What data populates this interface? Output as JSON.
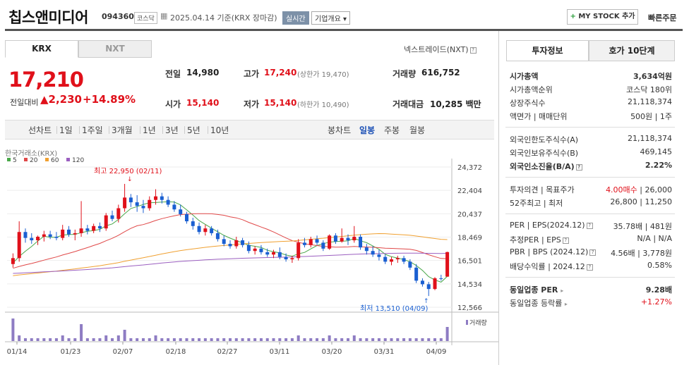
{
  "header": {
    "name": "칩스앤미디어",
    "code": "094360",
    "market_tag": "코스닥",
    "date_text": "2025.04.14 기준(KRX 장마감)",
    "realtime": "실시간",
    "company_overview": "기업개요",
    "mystock": "MY STOCK 추가",
    "quick_order": "빠른주문"
  },
  "tabs": {
    "krx": "KRX",
    "nxt": "NXT",
    "nextrade": "넥스트레이드(NXT)"
  },
  "price": {
    "current": "17,210",
    "change_label": "전일대비",
    "change": "2,230",
    "change_pct": "+14.89%"
  },
  "quote": {
    "prev_label": "전일",
    "prev": "14,980",
    "high_label": "고가",
    "high": "17,240",
    "high_sub": "(상한가 19,470)",
    "volume_label": "거래량",
    "volume": "616,752",
    "open_label": "시가",
    "open": "15,140",
    "low_label": "저가",
    "low": "15,140",
    "low_sub": "(하한가 10,490)",
    "amount_label": "거래대금",
    "amount": "10,285",
    "amount_unit": "백만"
  },
  "chart_tabs": {
    "left": [
      "선차트",
      "1일",
      "1주일",
      "3개월",
      "1년",
      "3년",
      "5년",
      "10년"
    ],
    "right": [
      "봉차트",
      "일봉",
      "주봉",
      "월봉"
    ],
    "active": "일봉"
  },
  "chart_data": {
    "type": "candlestick",
    "source": "한국거래소(KRX)",
    "legend": [
      {
        "name": "5",
        "color": "#4aa84a"
      },
      {
        "name": "20",
        "color": "#e04848"
      },
      {
        "name": "60",
        "color": "#f0a030"
      },
      {
        "name": "120",
        "color": "#9b5fc0"
      }
    ],
    "yticks": [
      "24,372",
      "22,404",
      "20,437",
      "18,469",
      "16,501",
      "14,534",
      "12,566"
    ],
    "ylim": [
      12566,
      24372
    ],
    "xticks": [
      "01/14",
      "01/23",
      "02/07",
      "02/18",
      "02/27",
      "03/11",
      "03/20",
      "03/31",
      "04/09"
    ],
    "high_annotation": "최고 22,950 (02/11)",
    "low_annotation": "최저 13,510 (04/09)",
    "volume_label": "거래량",
    "candles": [
      [
        16200,
        17100,
        15900,
        16700
      ],
      [
        16700,
        19800,
        16400,
        18900
      ],
      [
        18900,
        19200,
        18000,
        18400
      ],
      [
        18400,
        18800,
        17900,
        18200
      ],
      [
        18200,
        18600,
        17800,
        18500
      ],
      [
        18500,
        19000,
        18100,
        18700
      ],
      [
        18700,
        19000,
        18300,
        18500
      ],
      [
        18500,
        18900,
        18200,
        18400
      ],
      [
        18400,
        19500,
        18200,
        19100
      ],
      [
        19100,
        19400,
        18500,
        18700
      ],
      [
        18700,
        19100,
        18200,
        18800
      ],
      [
        18800,
        21500,
        18500,
        19200
      ],
      [
        19200,
        19500,
        18700,
        19000
      ],
      [
        19000,
        19600,
        18800,
        19400
      ],
      [
        19400,
        19700,
        18900,
        19200
      ],
      [
        19200,
        20500,
        19000,
        20300
      ],
      [
        20300,
        20700,
        19800,
        20000
      ],
      [
        20000,
        21200,
        19700,
        20900
      ],
      [
        20900,
        22950,
        20600,
        21800
      ],
      [
        21800,
        22100,
        21000,
        21400
      ],
      [
        21400,
        22000,
        20600,
        21100
      ],
      [
        21100,
        21600,
        20500,
        20900
      ],
      [
        20900,
        21900,
        20700,
        21600
      ],
      [
        21600,
        22500,
        21200,
        21900
      ],
      [
        21900,
        22200,
        21300,
        21600
      ],
      [
        21600,
        21900,
        21000,
        21200
      ],
      [
        21200,
        21500,
        20600,
        20800
      ],
      [
        20800,
        21200,
        20200,
        20400
      ],
      [
        20400,
        20600,
        19600,
        19800
      ],
      [
        19800,
        20100,
        19100,
        19400
      ],
      [
        19400,
        19700,
        18700,
        18900
      ],
      [
        18900,
        19500,
        18600,
        19200
      ],
      [
        19200,
        19400,
        18600,
        18800
      ],
      [
        18800,
        19100,
        18100,
        18300
      ],
      [
        18300,
        18600,
        17700,
        17900
      ],
      [
        17900,
        18200,
        17500,
        17700
      ],
      [
        17700,
        18500,
        17500,
        18200
      ],
      [
        18200,
        18400,
        17600,
        17800
      ],
      [
        17800,
        18100,
        17100,
        17300
      ],
      [
        17300,
        17700,
        17000,
        17500
      ],
      [
        17500,
        17800,
        17000,
        17200
      ],
      [
        17200,
        17500,
        16800,
        17000
      ],
      [
        17000,
        17400,
        16700,
        17200
      ],
      [
        17200,
        17600,
        16600,
        16800
      ],
      [
        16800,
        17100,
        16400,
        16600
      ],
      [
        16600,
        16900,
        16300,
        16700
      ],
      [
        16700,
        18300,
        16500,
        18000
      ],
      [
        18000,
        18400,
        17600,
        17800
      ],
      [
        17800,
        18500,
        17600,
        18300
      ],
      [
        18300,
        18600,
        17800,
        18000
      ],
      [
        18000,
        18200,
        17300,
        17500
      ],
      [
        17500,
        18700,
        17400,
        18600
      ],
      [
        18600,
        18800,
        17900,
        18100
      ],
      [
        18100,
        19200,
        18000,
        18400
      ],
      [
        18400,
        18700,
        17800,
        18200
      ],
      [
        18200,
        19400,
        18000,
        18500
      ],
      [
        18500,
        18700,
        17400,
        17600
      ],
      [
        17600,
        17900,
        17000,
        17300
      ],
      [
        17300,
        17700,
        16800,
        17000
      ],
      [
        17000,
        17400,
        16500,
        16800
      ],
      [
        16800,
        17000,
        16200,
        16400
      ],
      [
        16400,
        16800,
        16100,
        16600
      ],
      [
        16600,
        16900,
        16300,
        16700
      ],
      [
        16700,
        16900,
        16200,
        16400
      ],
      [
        16400,
        16600,
        15700,
        15900
      ],
      [
        15900,
        16200,
        14600,
        14800
      ],
      [
        14800,
        15000,
        14300,
        14500
      ],
      [
        14500,
        14700,
        13510,
        14100
      ],
      [
        14100,
        15100,
        14000,
        15000
      ],
      [
        15000,
        15300,
        14800,
        14980
      ],
      [
        15140,
        17240,
        15140,
        17210
      ]
    ],
    "volumes": [
      8,
      2,
      1,
      1,
      1,
      1,
      1,
      1,
      2,
      1,
      1,
      6,
      1,
      1,
      1,
      2,
      1,
      2,
      4,
      1,
      1,
      1,
      1,
      2,
      1,
      1,
      1,
      1,
      1,
      1,
      1,
      1,
      1,
      1,
      1,
      1,
      1,
      1,
      1,
      1,
      1,
      1,
      1,
      1,
      1,
      1,
      2,
      1,
      1,
      1,
      1,
      2,
      1,
      1,
      1,
      2,
      1,
      1,
      1,
      1,
      1,
      1,
      1,
      1,
      1,
      1,
      1,
      1,
      1,
      1,
      5
    ]
  },
  "right_tabs": {
    "invest": "투자정보",
    "hoga": "호가 10단계"
  },
  "invest": {
    "market_cap_label": "시가총액",
    "market_cap": "3,634억원",
    "market_cap_rank_label": "시가총액순위",
    "market_cap_rank": "코스닥 180위",
    "shares_label": "상장주식수",
    "shares": "21,118,374",
    "par_label": "액면가 | 매매단위",
    "par": "500원 | 1주",
    "foreign_limit_label": "외국인한도주식수(A)",
    "foreign_limit": "21,118,374",
    "foreign_hold_label": "외국인보유주식수(B)",
    "foreign_hold": "469,145",
    "foreign_ratio_label": "외국인소진율(B/A)",
    "foreign_ratio": "2.22%",
    "opinion_label": "투자의견 | 목표주가",
    "opinion": "4.00매수",
    "target": "26,000",
    "week52_label": "52주최고 | 최저",
    "week52": "26,800 | 11,250",
    "per_label": "PER | EPS(2024.12)",
    "per": "35.78배 | 481원",
    "est_per_label": "추정PER | EPS",
    "est_per": "N/A | N/A",
    "pbr_label": "PBR | BPS (2024.12)",
    "pbr": "4.56배 | 3,778원",
    "div_label": "배당수익률 | 2024.12",
    "div": "0.58%",
    "industry_per_label": "동일업종 PER",
    "industry_per": "9.28배",
    "industry_rate_label": "동일업종 등락률",
    "industry_rate": "+1.27%"
  }
}
